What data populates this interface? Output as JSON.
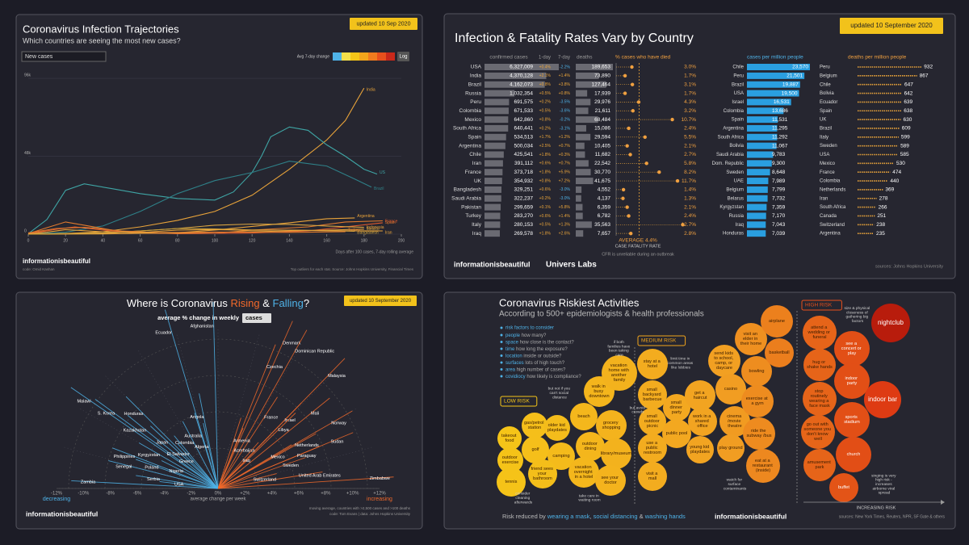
{
  "chart_data": [
    {
      "type": "line",
      "title": "Coronavirus Infection Trajectories",
      "subtitle": "Which countries are seeing the most new cases?",
      "updated": "updated 10 Sep 2020",
      "dropdown": "New cases",
      "legend_title": "Avg 7-day change",
      "log_button": "Log",
      "xlim": [
        0,
        200
      ],
      "xticks": [
        0,
        20,
        40,
        60,
        80,
        100,
        120,
        140,
        160,
        180,
        200
      ],
      "ylim": [
        0,
        100000
      ],
      "yticks": [
        {
          "value": 0,
          "label": "0"
        },
        {
          "value": 48000,
          "label": "48k"
        },
        {
          "value": 96000,
          "label": "96k"
        }
      ],
      "series": [
        {
          "name": "India",
          "color": "#e8a33a",
          "x": [
            0,
            20,
            40,
            60,
            80,
            100,
            120,
            140,
            160,
            170,
            180
          ],
          "values": [
            40,
            400,
            1500,
            4500,
            8500,
            14000,
            24000,
            40000,
            58000,
            70000,
            90000
          ]
        },
        {
          "name": "US",
          "color": "#3fa5a5",
          "x": [
            0,
            10,
            20,
            30,
            45,
            60,
            80,
            100,
            110,
            120,
            125,
            130,
            140,
            150,
            160,
            170,
            180,
            187
          ],
          "values": [
            300,
            9000,
            27000,
            31000,
            28000,
            25000,
            22000,
            21000,
            26000,
            38000,
            48000,
            60000,
            66000,
            64000,
            55000,
            48000,
            40000,
            37000
          ]
        },
        {
          "name": "Brazil",
          "color": "#2f8088",
          "x": [
            0,
            20,
            40,
            60,
            80,
            100,
            120,
            140,
            160,
            175,
            184
          ],
          "values": [
            80,
            1200,
            5000,
            14000,
            25000,
            33000,
            38000,
            45000,
            42000,
            34000,
            29000
          ]
        },
        {
          "name": "Argentina",
          "color": "#e8a33a",
          "x": [
            0,
            40,
            80,
            100,
            120,
            140,
            160,
            175
          ],
          "values": [
            20,
            150,
            900,
            2500,
            4800,
            7000,
            9500,
            10000
          ]
        },
        {
          "name": "Spain",
          "color": "#e07a2e",
          "x": [
            0,
            10,
            20,
            30,
            50,
            80,
            100,
            120,
            150,
            170,
            190
          ],
          "values": [
            300,
            4000,
            7500,
            5500,
            1500,
            300,
            500,
            2500,
            4500,
            7500,
            8200
          ]
        },
        {
          "name": "France",
          "color": "#e05a2e",
          "x": [
            0,
            15,
            25,
            40,
            60,
            100,
            120,
            150,
            170,
            190
          ],
          "values": [
            200,
            3000,
            4500,
            2500,
            600,
            500,
            700,
            2000,
            4500,
            7000
          ]
        },
        {
          "name": "Mexico",
          "color": "#d9a441",
          "x": [
            0,
            40,
            60,
            80,
            100,
            120,
            140,
            160,
            180
          ],
          "values": [
            20,
            600,
            2000,
            3500,
            5500,
            6200,
            6000,
            5000,
            4200
          ]
        },
        {
          "name": "Indonesia",
          "color": "#e8a33a",
          "x": [
            0,
            40,
            80,
            120,
            160,
            180
          ],
          "values": [
            50,
            350,
            800,
            1500,
            2500,
            3100
          ]
        },
        {
          "name": "Bangladesh",
          "color": "#c9a03a",
          "x": [
            0,
            40,
            60,
            80,
            100,
            120,
            140,
            160,
            175
          ],
          "values": [
            10,
            800,
            2000,
            3500,
            3200,
            2600,
            2500,
            2200,
            1800
          ]
        },
        {
          "name": "Turkey",
          "color": "#e07a2e",
          "x": [
            0,
            15,
            30,
            50,
            70,
            100,
            140,
            170
          ],
          "values": [
            800,
            3500,
            4200,
            2000,
            1000,
            1300,
            1100,
            1500
          ]
        },
        {
          "name": "Iran",
          "color": "#e8a33a",
          "x": [
            0,
            10,
            20,
            40,
            60,
            80,
            100,
            120,
            140,
            160,
            190
          ],
          "values": [
            150,
            1200,
            2800,
            1500,
            1000,
            2500,
            2800,
            2400,
            2500,
            2100,
            2000
          ]
        }
      ],
      "footnote": "Days after 100 cases, 7-day rolling average",
      "brand": "informationisbeautiful",
      "credit": "code: Omid Kashan",
      "source": "Top outliers for each stat. Source: Johns Hopkins University, Financial Times"
    },
    {
      "type": "table",
      "title": "Infection & Fatality Rates Vary by Country",
      "updated": "updated 10 September 2020",
      "headers": {
        "confirmed": "confirmed cases",
        "day1": "1-day",
        "day7": "7-day",
        "deaths": "deaths",
        "cfr": "% cases who have died",
        "cases_million": "cases per million people",
        "deaths_million": "deaths per million people"
      },
      "countries": [
        "USA",
        "India",
        "Brazil",
        "Russia",
        "Peru",
        "Colombia",
        "Mexico",
        "South Africa",
        "Spain",
        "Argentina",
        "Chile",
        "Iran",
        "France",
        "UK",
        "Bangladesh",
        "Saudi Arabia",
        "Pakistan",
        "Turkey",
        "Italy",
        "Iraq"
      ],
      "confirmed": {
        "values": [
          6327009,
          4370128,
          4162073,
          1032354,
          691575,
          671533,
          642860,
          640441,
          534513,
          500034,
          425541,
          391112,
          373718,
          354932,
          329251,
          322237,
          299659,
          283270,
          280153,
          269578
        ],
        "value_labels": [
          "6,327,009",
          "4,370,128",
          "4,162,073",
          "1,032,354",
          "691,575",
          "671,533",
          "642,860",
          "640,441",
          "534,513",
          "500,034",
          "425,541",
          "391,112",
          "373,718",
          "354,932",
          "329,251",
          "322,237",
          "299,659",
          "283,270",
          "280,153",
          "269,578"
        ]
      },
      "day1": [
        "+0.4%",
        "+2.1%",
        "+0.8%",
        "+0.5%",
        "+0.2%",
        "+0.5%",
        "+0.8%",
        "+0.2%",
        "+1.7%",
        "+2.5%",
        "+1.8%",
        "+0.6%",
        "+1.8%",
        "+0.8%",
        "+0.6%",
        "+0.2%",
        "+0.1%",
        "+0.6%",
        "+0.5%",
        "+1.8%"
      ],
      "day7": [
        "-2.2%",
        "+1.4%",
        "+3.8%",
        "+0.8%",
        "-3.5%",
        "-3.6%",
        "-0.2%",
        "-3.1%",
        "+1.2%",
        "+0.7%",
        "+0.3%",
        "+0.7%",
        "+5.9%",
        "+7.2%",
        "-3.0%",
        "-3.0%",
        "+5.8%",
        "+1.4%",
        "+1.3%",
        "+2.6%"
      ],
      "deaths": {
        "values": [
          189653,
          73890,
          127464,
          17939,
          29976,
          21611,
          68484,
          15086,
          29594,
          10405,
          11682,
          22542,
          30770,
          41675,
          4552,
          4137,
          6359,
          6782,
          35563,
          7657
        ],
        "value_labels": [
          "189,653",
          "73,890",
          "127,464",
          "17,939",
          "29,976",
          "21,611",
          "68,484",
          "15,086",
          "29,594",
          "10,405",
          "11,682",
          "22,542",
          "30,770",
          "41,675",
          "4,552",
          "4,137",
          "6,359",
          "6,782",
          "35,563",
          "7,657"
        ]
      },
      "cfr": {
        "values": [
          3.0,
          1.7,
          3.1,
          1.7,
          4.3,
          3.2,
          10.7,
          2.4,
          5.5,
          2.1,
          2.7,
          5.8,
          8.2,
          11.7,
          1.4,
          1.3,
          2.1,
          2.4,
          12.7,
          2.8
        ],
        "value_labels": [
          "3.0%",
          "1.7%",
          "3.1%",
          "1.7%",
          "4.3%",
          "3.2%",
          "10.7%",
          "2.4%",
          "5.5%",
          "2.1%",
          "2.7%",
          "5.8%",
          "8.2%",
          "11.7%",
          "1.4%",
          "1.3%",
          "2.1%",
          "2.4%",
          "12.7%",
          "2.8%"
        ]
      },
      "average": {
        "value": 4.4,
        "label": "AVERAGE 4.4%"
      },
      "cfr_caption": "CASE FATALITY RATE",
      "cfr_note": "CFR is unreliable during an outbreak",
      "cases_per_million": {
        "countries": [
          "Chile",
          "Peru",
          "Brazil",
          "USA",
          "Israel",
          "Colombia",
          "Spain",
          "Argentina",
          "South Africa",
          "Bolivia",
          "Saudi Arabia",
          "Dom. Republic",
          "Sweden",
          "UAE",
          "Belgium",
          "Belarus",
          "Kyrgyzstan",
          "Russia",
          "Iraq",
          "Honduras"
        ],
        "values": [
          23570,
          21501,
          19887,
          19500,
          16531,
          13686,
          11531,
          11295,
          11292,
          11067,
          9783,
          9300,
          8648,
          7989,
          7799,
          7732,
          7359,
          7170,
          7043,
          7039
        ],
        "value_labels": [
          "23,570",
          "21,501",
          "19,887",
          "19,500",
          "16,531",
          "13,686",
          "11,531",
          "11,295",
          "11,292",
          "11,067",
          "9,783",
          "9,300",
          "8,648",
          "7,989",
          "7,799",
          "7,732",
          "7,359",
          "7,170",
          "7,043",
          "7,039"
        ]
      },
      "deaths_per_million": {
        "countries": [
          "Peru",
          "Belgium",
          "Chile",
          "Bolivia",
          "Ecuador",
          "Spain",
          "UK",
          "Brazil",
          "Italy",
          "Sweden",
          "USA",
          "Mexico",
          "France",
          "Colombia",
          "Netherlands",
          "Iran",
          "South Africa",
          "Canada",
          "Switzerland",
          "Argentina"
        ],
        "values": [
          932,
          867,
          647,
          642,
          639,
          638,
          630,
          609,
          599,
          589,
          585,
          530,
          474,
          440,
          369,
          278,
          266,
          251,
          238,
          235
        ]
      },
      "brand": "informationisbeautiful",
      "partner": "Univers Labs",
      "source": "sources: Johns Hopkins University"
    },
    {
      "type": "radial",
      "title_parts": [
        "Where is Coronavirus ",
        "Rising",
        " & ",
        "Falling",
        "?"
      ],
      "subtitle": "average % change in weekly",
      "dropdown": "cases",
      "updated": "updated 10 September 2020",
      "colors": {
        "decreasing": "#4fb3e8",
        "increasing": "#f2692a"
      },
      "xlim": [
        -12,
        12
      ],
      "xticks": [
        {
          "value": -12,
          "label": "-12%"
        },
        {
          "value": -10,
          "label": "-10%"
        },
        {
          "value": -8,
          "label": "-8%"
        },
        {
          "value": -6,
          "label": "-6%"
        },
        {
          "value": -4,
          "label": "-4%"
        },
        {
          "value": -2,
          "label": "-2%"
        },
        {
          "value": 0,
          "label": "0%"
        },
        {
          "value": 2,
          "label": "+2%"
        },
        {
          "value": 4,
          "label": "+4%"
        },
        {
          "value": 6,
          "label": "+6%"
        },
        {
          "value": 8,
          "label": "+8%"
        },
        {
          "value": 10,
          "label": "+10%"
        },
        {
          "value": 12,
          "label": "+12%"
        }
      ],
      "countries": [
        "Ecuador",
        "Afghanistan",
        "Denmark",
        "Dominican Republic",
        "Czechia",
        "Malaysia",
        "Malawi",
        "S. Korea",
        "Honduras",
        "Kazakhstan",
        "Angola",
        "Australia",
        "France",
        "Israel",
        "Mali",
        "Norway",
        "Libya",
        "Japan",
        "Colombia",
        "Algeria",
        "Armenia",
        "Sudan",
        "Philippines",
        "Kyrgyzstan",
        "El Salvador",
        "Greece",
        "Azerbaijan",
        "Netherlands",
        "Mexico",
        "Paraguay",
        "Iraq",
        "Senegal",
        "Poland",
        "Nigeria",
        "Sweden",
        "Serbia",
        "Zambia",
        "USA",
        "United Arab Emirates",
        "Switzerland",
        "Zimbabwe"
      ],
      "values": [
        -2.2,
        -0.2,
        3.2,
        3.9,
        2.9,
        5.9,
        -7.4,
        -7.2,
        -6.0,
        -6.8,
        -1.5,
        -2.3,
        4.4,
        5.9,
        6.8,
        8.0,
        6.1,
        -6.3,
        -3.7,
        -1.7,
        2.4,
        9.0,
        -9.2,
        -8.0,
        -5.3,
        -5.6,
        3.0,
        8.1,
        7.9,
        9.0,
        5.5,
        -10.1,
        -9.4,
        -8.5,
        9.4,
        -10.8,
        -11.6,
        -11.1,
        10.8,
        10.1,
        11.5
      ],
      "decreasing": "decreasing",
      "increasing": "increasing",
      "axis_label": "average change per week",
      "brand": "informationisbeautiful",
      "note": "moving average, countries with >2,500 cases and >100 deaths",
      "credit": "code: Tom Evans | data: Johns Hopkins University"
    },
    {
      "type": "bubble",
      "title": "Coronavirus Riskiest Activities",
      "subtitle": "According to 500+ epidemiologists & health professionals",
      "legend_title": "risk factors to consider",
      "factors": [
        {
          "name": "people",
          "desc": "how many?"
        },
        {
          "name": "space",
          "desc": "how close is the contact?"
        },
        {
          "name": "time",
          "desc": "how long the exposure?"
        },
        {
          "name": "location",
          "desc": "inside or outside?"
        },
        {
          "name": "surfaces",
          "desc": "lots of high touch?"
        },
        {
          "name": "area",
          "desc": "high number of cases?"
        },
        {
          "name": "covidiocy",
          "desc": "how likely is compliance?"
        }
      ],
      "levels": [
        {
          "name": "LOW RISK",
          "activities": [
            "takeout food",
            "gas/petrol station",
            "older kid playdates",
            "beach",
            "walk in busy downtown",
            "vacation home with another family",
            "outdoor exercise",
            "golf",
            "camping",
            "outdoor dining",
            "grocery shopping",
            "library/museum",
            "tennis",
            "friend sees your bathroom",
            "vacation overnight in a hotel",
            "see your doctor"
          ]
        },
        {
          "name": "MEDIUM RISK",
          "activities": [
            "stay at a hotel",
            "small backyard barbecue",
            "small outdoor picnic",
            "use a public restroom",
            "visit a mall",
            "small dinner party",
            "public pool",
            "get a haircut",
            "work in a shared office",
            "young kid playdates",
            "send kids to school, camp, or daycare",
            "casino",
            "cinema /movie theatre",
            "play ground",
            "visit an elder in their home",
            "bowling",
            "exercise at a gym",
            "ride the subway /bus",
            "eat at a restaurant (inside)",
            "airplane",
            "basketball"
          ]
        },
        {
          "name": "HIGH RISK",
          "activities": [
            "attend a wedding or funeral",
            "hug or shake hands",
            "stop routinely wearing a face mask",
            "go out with someone you don't know well",
            "amusement park",
            "buffet",
            "see a concert or play",
            "indoor party",
            "sports stadium",
            "church",
            "indoor bar",
            "nightclub"
          ]
        }
      ],
      "annotations": [
        "if both families have been taking care",
        "limit time in common areas like lobbies",
        "but not if you can't social distance",
        "but avoid crowds",
        "watch for surface contaminants",
        "size & physical closeness of gathering big factors",
        "singing is very high risk - increases airborne viral spread",
        "consider cleaning afterwards",
        "take care in waiting room"
      ],
      "axis_label": "INCREASING RISK",
      "footer_parts": [
        "Risk reduced by ",
        "wearing a mask",
        ", ",
        "social distancing",
        " & ",
        "washing hands"
      ],
      "brand": "informationisbeautiful",
      "source": "sources: New York Times, Reuters, NPR, SF Gate & others"
    }
  ]
}
